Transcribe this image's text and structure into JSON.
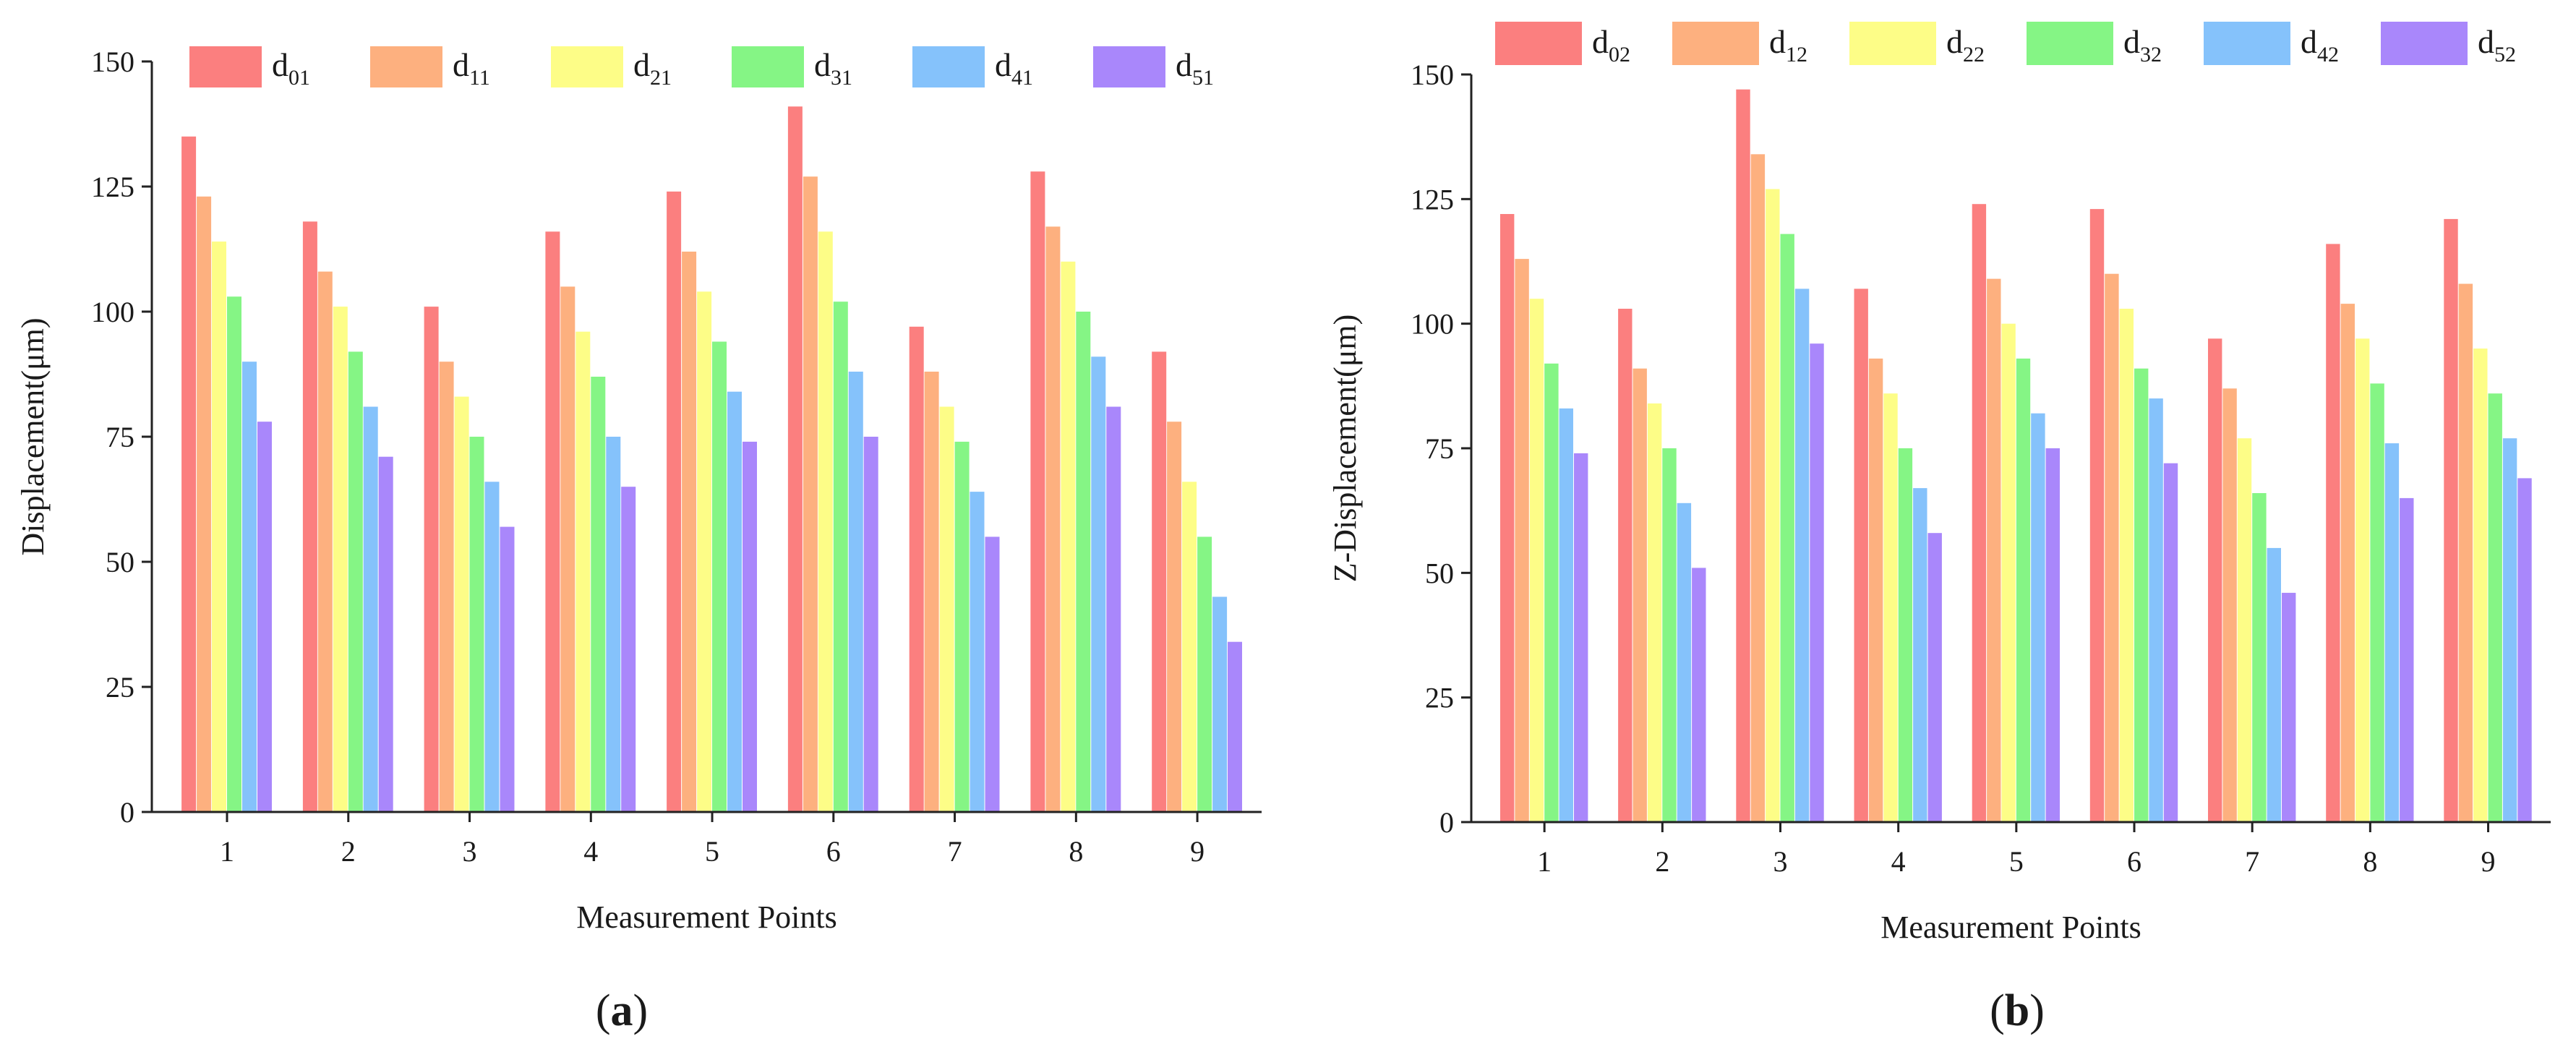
{
  "colors": {
    "series": [
      "#fb7f7f",
      "#fdb07f",
      "#fdfd87",
      "#85f585",
      "#85c2fb",
      "#a987fb"
    ],
    "axis": "#222222",
    "text": "#1a1a1a"
  },
  "chart_data": [
    {
      "type": "bar",
      "caption": {
        "open": "(",
        "letter": "a",
        "close": ")"
      },
      "xlabel": "Measurement Points",
      "ylabel": "Displacement(μm)",
      "categories": [
        "1",
        "2",
        "3",
        "4",
        "5",
        "6",
        "7",
        "8",
        "9"
      ],
      "ylim": [
        0,
        150
      ],
      "yticks": [
        0,
        25,
        50,
        75,
        100,
        125,
        150
      ],
      "grid": false,
      "legend_position": "top",
      "series": [
        {
          "name": "d01",
          "label_main": "d",
          "label_sub": "01",
          "values": [
            135,
            118,
            101,
            116,
            124,
            141,
            97,
            128,
            92
          ]
        },
        {
          "name": "d11",
          "label_main": "d",
          "label_sub": "11",
          "values": [
            123,
            108,
            90,
            105,
            112,
            127,
            88,
            117,
            78
          ]
        },
        {
          "name": "d21",
          "label_main": "d",
          "label_sub": "21",
          "values": [
            114,
            101,
            83,
            96,
            104,
            116,
            81,
            110,
            66
          ]
        },
        {
          "name": "d31",
          "label_main": "d",
          "label_sub": "31",
          "values": [
            103,
            92,
            75,
            87,
            94,
            102,
            74,
            100,
            55
          ]
        },
        {
          "name": "d41",
          "label_main": "d",
          "label_sub": "41",
          "values": [
            90,
            81,
            66,
            75,
            84,
            88,
            64,
            91,
            43
          ]
        },
        {
          "name": "d51",
          "label_main": "d",
          "label_sub": "51",
          "values": [
            78,
            71,
            57,
            65,
            74,
            75,
            55,
            81,
            34
          ]
        }
      ]
    },
    {
      "type": "bar",
      "caption": {
        "open": "(",
        "letter": "b",
        "close": ")"
      },
      "xlabel": "Measurement Points",
      "ylabel": "Z-Displacement(μm)",
      "categories": [
        "1",
        "2",
        "3",
        "4",
        "5",
        "6",
        "7",
        "8",
        "9"
      ],
      "ylim": [
        0,
        150
      ],
      "yticks": [
        0,
        25,
        50,
        75,
        100,
        125,
        150
      ],
      "grid": false,
      "legend_position": "top",
      "series": [
        {
          "name": "d02",
          "label_main": "d",
          "label_sub": "02",
          "values": [
            122,
            103,
            147,
            107,
            124,
            123,
            97,
            116,
            121
          ]
        },
        {
          "name": "d12",
          "label_main": "d",
          "label_sub": "12",
          "values": [
            113,
            91,
            134,
            93,
            109,
            110,
            87,
            104,
            108
          ]
        },
        {
          "name": "d22",
          "label_main": "d",
          "label_sub": "22",
          "values": [
            105,
            84,
            127,
            86,
            100,
            103,
            77,
            97,
            95
          ]
        },
        {
          "name": "d32",
          "label_main": "d",
          "label_sub": "32",
          "values": [
            92,
            75,
            118,
            75,
            93,
            91,
            66,
            88,
            86
          ]
        },
        {
          "name": "d42",
          "label_main": "d",
          "label_sub": "42",
          "values": [
            83,
            64,
            107,
            67,
            82,
            85,
            55,
            76,
            77
          ]
        },
        {
          "name": "d52",
          "label_main": "d",
          "label_sub": "52",
          "values": [
            74,
            51,
            96,
            58,
            75,
            72,
            46,
            65,
            69
          ]
        }
      ]
    }
  ]
}
